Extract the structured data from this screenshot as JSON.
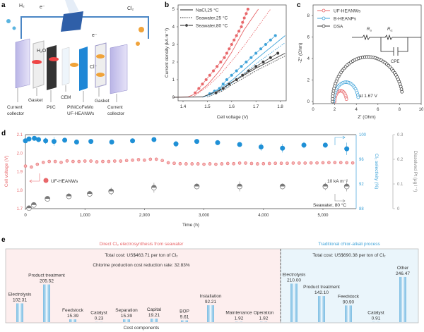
{
  "panel_labels": {
    "a": "a",
    "b": "b",
    "c": "c",
    "d": "d",
    "e": "e"
  },
  "panel_a": {
    "h2": "H₂",
    "e1": "e⁻",
    "e2": "e⁻",
    "cl2": "Cl₂",
    "h2o": "H₂O",
    "cl": "Cl⁻",
    "current_collector_left": [
      "Current",
      "collector"
    ],
    "gasket_left": "Gasket",
    "ptc": "Pt/C",
    "cem": "CEM",
    "anode": [
      "PtNiCoFeMo",
      "UF-HEANWs"
    ],
    "gasket_right": "Gasket",
    "current_collector_right": [
      "Current",
      "collector"
    ]
  },
  "colors": {
    "uf_heanws": "#e8676a",
    "b_heanps": "#3fa3d9",
    "dsa": "#3a3a3a",
    "pt": "#8a8a8a",
    "pink_bg": "#fdeeee",
    "blue_bg": "#eaf5fb"
  },
  "chart_data": [
    {
      "type": "line",
      "xlabel": "Cell voltage (V)",
      "ylabel": "Current density (kA m⁻²)",
      "xlim": [
        1.35,
        1.82
      ],
      "ylim": [
        -0.2,
        5.2
      ],
      "xticks": [
        "1.4",
        "1.5",
        "1.6",
        "1.7",
        "1.8"
      ],
      "yticks": [
        "0",
        "1",
        "2",
        "3",
        "4",
        "5"
      ],
      "legend": [
        {
          "label": "NaCl,25 °C",
          "style": "solid"
        },
        {
          "label": "Seawater,25 °C",
          "style": "dotted"
        },
        {
          "label": "Seawater,80 °C",
          "style": "markers"
        }
      ],
      "series": [
        {
          "color": "#e8676a",
          "condition": "NaCl,25 °C",
          "style": "solid",
          "points": [
            [
              1.36,
              0
            ],
            [
              1.42,
              0.02
            ],
            [
              1.46,
              0.25
            ],
            [
              1.5,
              0.7
            ],
            [
              1.55,
              1.5
            ],
            [
              1.6,
              2.55
            ],
            [
              1.65,
              3.8
            ],
            [
              1.71,
              5.0
            ]
          ]
        },
        {
          "color": "#e8676a",
          "condition": "Seawater,25 °C",
          "style": "dotted",
          "points": [
            [
              1.44,
              0.02
            ],
            [
              1.5,
              0.6
            ],
            [
              1.55,
              1.25
            ],
            [
              1.6,
              2.05
            ],
            [
              1.65,
              2.9
            ],
            [
              1.7,
              3.85
            ],
            [
              1.76,
              5.0
            ]
          ]
        },
        {
          "color": "#e8676a",
          "condition": "Seawater,80 °C",
          "style": "markers",
          "points": [
            [
              1.45,
              0.25
            ],
            [
              1.465,
              0.5
            ],
            [
              1.48,
              0.75
            ],
            [
              1.495,
              1.0
            ],
            [
              1.51,
              1.25
            ],
            [
              1.525,
              1.5
            ],
            [
              1.54,
              1.75
            ],
            [
              1.555,
              2.0
            ],
            [
              1.57,
              2.25
            ],
            [
              1.58,
              2.5
            ],
            [
              1.59,
              2.75
            ],
            [
              1.6,
              3.0
            ],
            [
              1.61,
              3.25
            ],
            [
              1.62,
              3.5
            ],
            [
              1.63,
              3.75
            ],
            [
              1.64,
              4.0
            ],
            [
              1.645,
              4.25
            ],
            [
              1.652,
              4.5
            ],
            [
              1.66,
              4.75
            ],
            [
              1.667,
              5.0
            ]
          ]
        },
        {
          "color": "#3fa3d9",
          "condition": "NaCl,25 °C",
          "style": "solid",
          "points": [
            [
              1.48,
              0
            ],
            [
              1.52,
              0.2
            ],
            [
              1.6,
              0.95
            ],
            [
              1.7,
              2.15
            ],
            [
              1.82,
              3.5
            ]
          ]
        },
        {
          "color": "#3fa3d9",
          "condition": "Seawater,25 °C",
          "style": "dotted",
          "points": [
            [
              1.5,
              0.02
            ],
            [
              1.55,
              0.3
            ],
            [
              1.6,
              0.8
            ],
            [
              1.7,
              1.9
            ],
            [
              1.82,
              3.1
            ]
          ]
        },
        {
          "color": "#3fa3d9",
          "condition": "Seawater,80 °C",
          "style": "markers",
          "points": [
            [
              1.51,
              0.2
            ],
            [
              1.53,
              0.35
            ],
            [
              1.55,
              0.5
            ],
            [
              1.565,
              0.75
            ],
            [
              1.58,
              1.0
            ],
            [
              1.6,
              1.25
            ],
            [
              1.62,
              1.5
            ],
            [
              1.64,
              1.75
            ],
            [
              1.66,
              2.0
            ],
            [
              1.68,
              2.25
            ],
            [
              1.7,
              2.5
            ],
            [
              1.72,
              2.75
            ],
            [
              1.74,
              3.0
            ],
            [
              1.76,
              3.25
            ],
            [
              1.78,
              3.5
            ]
          ]
        },
        {
          "color": "#3a3a3a",
          "condition": "NaCl,25 °C",
          "style": "solid",
          "points": [
            [
              1.36,
              0
            ],
            [
              1.48,
              0.02
            ],
            [
              1.55,
              0.4
            ],
            [
              1.6,
              0.85
            ],
            [
              1.7,
              1.65
            ],
            [
              1.82,
              2.5
            ]
          ]
        },
        {
          "color": "#3a3a3a",
          "condition": "Seawater,25 °C",
          "style": "dotted",
          "points": [
            [
              1.5,
              0.02
            ],
            [
              1.56,
              0.35
            ],
            [
              1.6,
              0.7
            ],
            [
              1.7,
              1.5
            ],
            [
              1.82,
              2.35
            ]
          ]
        },
        {
          "color": "#3a3a3a",
          "condition": "Seawater,80 °C",
          "style": "markers",
          "points": [
            [
              1.535,
              0.25
            ],
            [
              1.565,
              0.5
            ],
            [
              1.59,
              0.75
            ],
            [
              1.62,
              1.0
            ],
            [
              1.645,
              1.25
            ],
            [
              1.67,
              1.5
            ],
            [
              1.7,
              1.75
            ],
            [
              1.73,
              2.0
            ],
            [
              1.76,
              2.25
            ],
            [
              1.79,
              2.5
            ]
          ]
        }
      ]
    },
    {
      "type": "scatter",
      "xlabel": "Z' (Ohm)",
      "ylabel": "-Z'' (Ohm)",
      "xlim": [
        0,
        10
      ],
      "ylim": [
        -0.2,
        8.9
      ],
      "xticks": [
        "0",
        "2",
        "4",
        "6",
        "8",
        "10"
      ],
      "yticks": [
        "0",
        "2",
        "4",
        "6",
        "8"
      ],
      "annotation": "at 1.67 V",
      "circuit": {
        "rs": "R",
        "rs_sub": "S",
        "rct": "R",
        "rct_sub": "ct",
        "cpe": "CPE"
      },
      "series": [
        {
          "name": "UF-HEANWs",
          "color": "#e8676a",
          "x_start": 2.0,
          "x_end": 3.1,
          "peak": 1.0
        },
        {
          "name": "B-HEANPs",
          "color": "#3fa3d9",
          "x_start": 1.9,
          "x_end": 4.2,
          "peak": 1.8
        },
        {
          "name": "DSA",
          "color": "#3a3a3a",
          "x_start": 1.8,
          "x_end": 8.3,
          "peak": 4.15
        }
      ]
    },
    {
      "type": "scatter",
      "xlabel": "Time (h)",
      "ylabel": "Cell voltage (V)",
      "y2label": "Cl₂ selectivity (%)",
      "y3label": "Dissolved Pt (μg l⁻¹)",
      "xlim": [
        0,
        5600
      ],
      "ylim": [
        1.7,
        2.1
      ],
      "y2lim": [
        88,
        100
      ],
      "y3lim": [
        0,
        0.3
      ],
      "xticks": [
        0,
        1000,
        2000,
        3000,
        4000,
        5000
      ],
      "yticks": [
        "1.7",
        "1.8",
        "1.9",
        "2.0",
        "2.1"
      ],
      "y2ticks": [
        "88",
        "92",
        "96",
        "100"
      ],
      "y3ticks": [
        "0",
        "0.1",
        "0.2",
        "0.3"
      ],
      "annotations": {
        "series_label": "UF-HEANWs",
        "current": "10 kA m⁻²",
        "condition": "Seawater, 80 °C"
      },
      "voltage": [
        [
          0,
          1.93
        ],
        [
          100,
          1.925
        ],
        [
          200,
          1.94
        ],
        [
          300,
          1.95
        ],
        [
          400,
          1.955
        ],
        [
          500,
          1.955
        ],
        [
          600,
          1.95
        ],
        [
          700,
          1.958
        ],
        [
          800,
          1.955
        ],
        [
          900,
          1.955
        ],
        [
          1000,
          1.957
        ],
        [
          1100,
          1.957
        ],
        [
          1200,
          1.953
        ],
        [
          1300,
          1.955
        ],
        [
          1400,
          1.955
        ],
        [
          1500,
          1.957
        ],
        [
          1600,
          1.957
        ],
        [
          1700,
          1.96
        ],
        [
          1800,
          1.962
        ],
        [
          1900,
          1.965
        ],
        [
          2000,
          1.962
        ],
        [
          2100,
          1.967
        ],
        [
          2200,
          1.967
        ],
        [
          2300,
          1.96
        ],
        [
          2400,
          1.948
        ],
        [
          2500,
          1.945
        ],
        [
          2600,
          1.943
        ],
        [
          2700,
          1.942
        ],
        [
          2800,
          1.942
        ],
        [
          2900,
          1.942
        ],
        [
          3000,
          1.94
        ],
        [
          3100,
          1.942
        ],
        [
          3200,
          1.94
        ],
        [
          3300,
          1.942
        ],
        [
          3400,
          1.944
        ],
        [
          3500,
          1.943
        ],
        [
          3600,
          1.946
        ],
        [
          3700,
          1.946
        ],
        [
          3800,
          1.944
        ],
        [
          3900,
          1.942
        ],
        [
          4000,
          1.943
        ],
        [
          4100,
          1.944
        ],
        [
          4200,
          1.945
        ],
        [
          4300,
          1.945
        ],
        [
          4400,
          1.945
        ],
        [
          4500,
          1.946
        ],
        [
          4600,
          1.946
        ],
        [
          4700,
          1.946
        ],
        [
          4800,
          1.947
        ],
        [
          4900,
          1.947
        ],
        [
          5000,
          1.948
        ],
        [
          5100,
          1.949
        ],
        [
          5200,
          1.949
        ],
        [
          5300,
          1.949
        ],
        [
          5400,
          1.948
        ],
        [
          5500,
          1.947
        ]
      ],
      "selectivity": [
        [
          0,
          99.0,
          0.3
        ],
        [
          60,
          99.3,
          0.3
        ],
        [
          150,
          99.4,
          0.3
        ],
        [
          220,
          99.2,
          0.3
        ],
        [
          340,
          99.0,
          0.5
        ],
        [
          480,
          98.9,
          0.7
        ],
        [
          660,
          99.1,
          0.3
        ],
        [
          860,
          98.8,
          0.3
        ],
        [
          1100,
          98.9,
          0.3
        ],
        [
          1450,
          98.8,
          0.3
        ],
        [
          1800,
          99.0,
          0.3
        ],
        [
          2160,
          99.2,
          0.4
        ],
        [
          2530,
          98.5,
          0.5
        ],
        [
          2880,
          98.9,
          0.3
        ],
        [
          3230,
          98.7,
          0.4
        ],
        [
          3600,
          98.4,
          0.4
        ],
        [
          3960,
          98.0,
          0.6
        ],
        [
          4320,
          97.8,
          0.7
        ],
        [
          4680,
          98.3,
          0.5
        ],
        [
          5040,
          98.3,
          0.4
        ],
        [
          5400,
          97.7,
          1.0
        ]
      ],
      "dissolved_pt": [
        [
          60,
          0.002,
          0
        ],
        [
          140,
          0.015,
          0.005
        ],
        [
          370,
          0.04,
          0.01
        ],
        [
          730,
          0.05,
          0.012
        ],
        [
          1080,
          0.06,
          0.012
        ],
        [
          1440,
          0.07,
          0.015
        ],
        [
          2160,
          0.085,
          0.02
        ],
        [
          2880,
          0.09,
          0.012
        ],
        [
          3600,
          0.09,
          0.02
        ],
        [
          4320,
          0.09,
          0.012
        ],
        [
          5040,
          0.09,
          0.015
        ],
        [
          5400,
          0.09,
          0.02
        ]
      ]
    },
    {
      "type": "bar",
      "xlabel": "Cost components",
      "groups": [
        {
          "title": "Direct Cl₂ electrosynthesis from seawater",
          "total": "Total cost: US$463.71 per ton of Cl₂",
          "note": "Chlorine production cost reduction rate: 32.83%",
          "categories": [
            "Electrolysis",
            "Product treatment",
            "Feedstock",
            "Catalyst",
            "Separation",
            "Capital",
            "BOP",
            "Installation",
            "Maintenance",
            "Operation"
          ],
          "values": [
            102.31,
            205.52,
            15.39,
            0.23,
            15.39,
            19.21,
            9.61,
            92.21,
            1.92,
            1.92
          ],
          "labels": [
            "102.31",
            "205.52",
            "15.39",
            "0.23",
            "15.39",
            "19.21",
            "9.61",
            "92.21",
            "1.92",
            "1.92"
          ]
        },
        {
          "title": "Traditional chlor-alkali process",
          "total": "Total cost: US$690.38 per ton of Cl₂",
          "categories": [
            "Electrolysis",
            "Product treatment",
            "Feedstock",
            "Catalyst",
            "Other"
          ],
          "values": [
            210.0,
            142.1,
            90.9,
            0.91,
            246.47
          ],
          "labels": [
            "210.00",
            "142.10",
            "90.90",
            "0.91",
            "246.47"
          ]
        }
      ]
    }
  ]
}
